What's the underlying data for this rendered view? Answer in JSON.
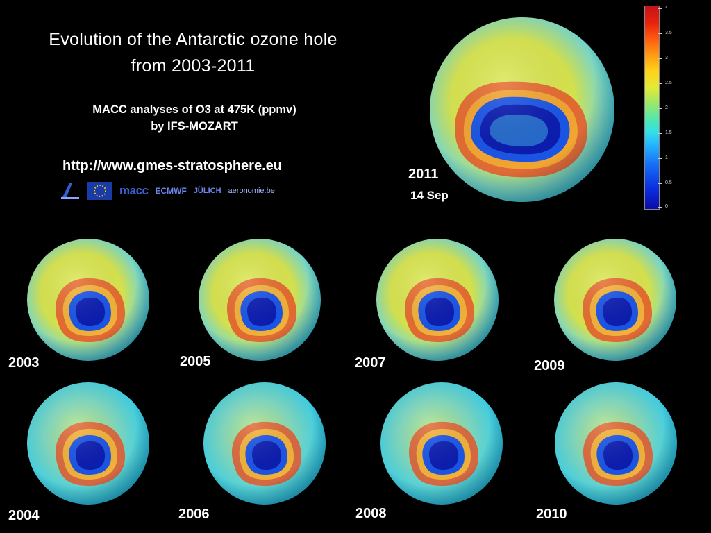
{
  "title": {
    "line1": "Evolution of the Antarctic ozone hole",
    "line2": "from 2003-2011"
  },
  "subtitle": {
    "line1": "MACC analyses of O3 at 475K (ppmv)",
    "line2": "by IFS-MOZART"
  },
  "url": "http://www.gmes-stratosphere.eu",
  "logos": [
    {
      "name": "eu-fp7-logo",
      "text": ""
    },
    {
      "name": "eu-flag-logo",
      "text": ""
    },
    {
      "name": "macc-logo",
      "text": "macc"
    },
    {
      "name": "ecmwf-logo",
      "text": "ECMWF"
    },
    {
      "name": "julich-logo",
      "text": "JÜLICH"
    },
    {
      "name": "aeronomie-logo",
      "text": "aeronomie.be"
    }
  ],
  "featured": {
    "year": "2011",
    "date": "14 Sep"
  },
  "maps": [
    {
      "year": "2003"
    },
    {
      "year": "2005"
    },
    {
      "year": "2007"
    },
    {
      "year": "2009"
    },
    {
      "year": "2004"
    },
    {
      "year": "2006"
    },
    {
      "year": "2008"
    },
    {
      "year": "2010"
    }
  ],
  "colorbar": {
    "ticks": [
      "4",
      "3.5",
      "3",
      "2.5",
      "2",
      "1.5",
      "1",
      "0.5",
      "0"
    ],
    "colors": [
      "#0a0ca8",
      "#1670f5",
      "#34e0e6",
      "#9be86a",
      "#ffd21a",
      "#ff5a10",
      "#c4141a"
    ]
  }
}
